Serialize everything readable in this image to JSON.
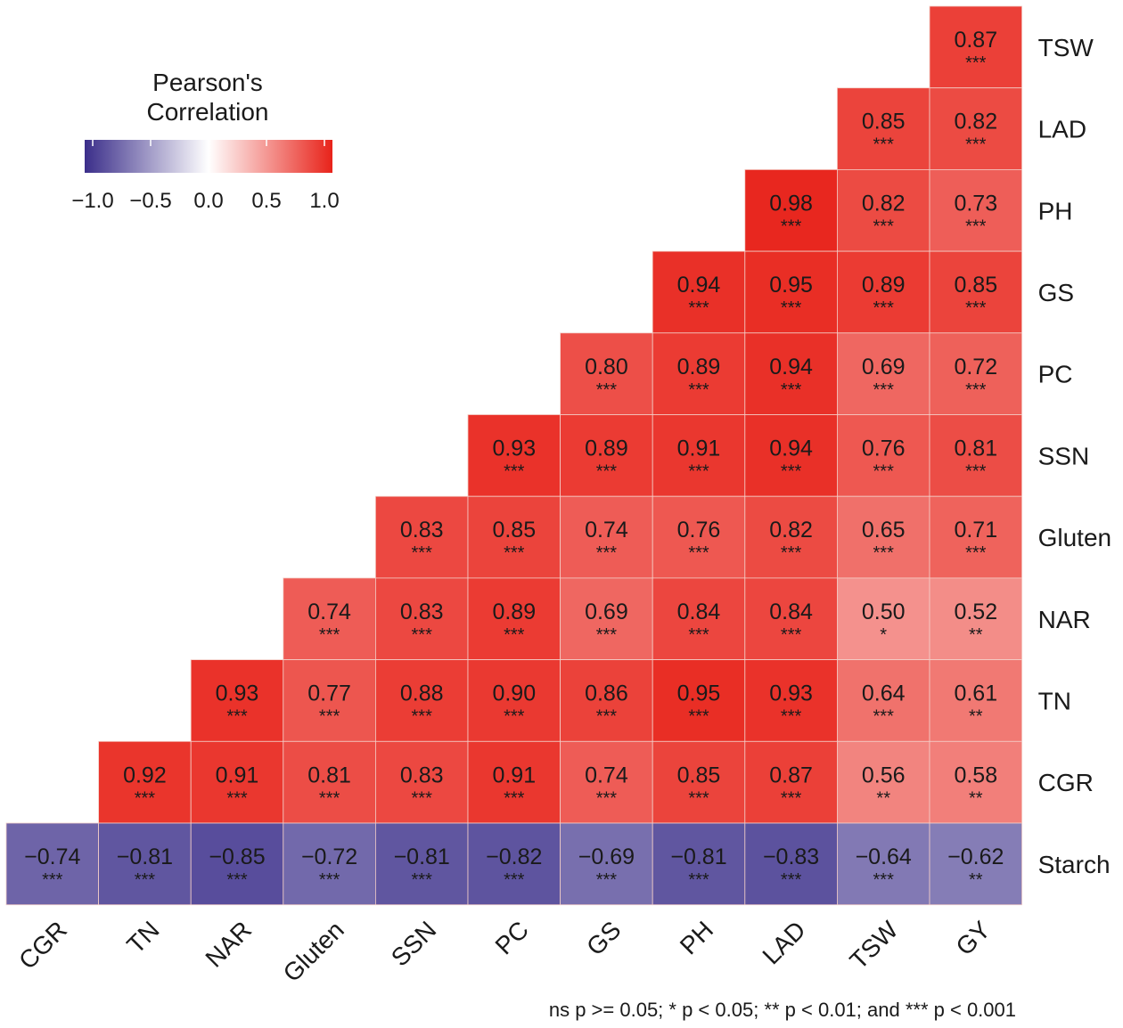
{
  "chart_data": {
    "type": "heatmap",
    "legend": {
      "title_lines": [
        "Pearson's",
        "Correlation"
      ],
      "ticks": [
        "−1.0",
        "−0.5",
        "0.0",
        "0.5",
        "1.0"
      ],
      "range": [
        -1.0,
        1.0
      ],
      "colors": {
        "low": "#3b2e8a",
        "mid": "#ffffff",
        "high": "#e8231a"
      },
      "placement": "top-left"
    },
    "columns": [
      "CGR",
      "TN",
      "NAR",
      "Gluten",
      "SSN",
      "PC",
      "GS",
      "PH",
      "LAD",
      "TSW",
      "GY"
    ],
    "rows": [
      "TSW",
      "LAD",
      "PH",
      "GS",
      "PC",
      "SSN",
      "Gluten",
      "NAR",
      "TN",
      "CGR",
      "Starch"
    ],
    "cells": [
      [
        null,
        null,
        null,
        null,
        null,
        null,
        null,
        null,
        null,
        null,
        {
          "v": 0.87,
          "label": "0.87",
          "sig": "***"
        }
      ],
      [
        null,
        null,
        null,
        null,
        null,
        null,
        null,
        null,
        null,
        {
          "v": 0.85,
          "label": "0.85",
          "sig": "***"
        },
        {
          "v": 0.82,
          "label": "0.82",
          "sig": "***"
        }
      ],
      [
        null,
        null,
        null,
        null,
        null,
        null,
        null,
        null,
        {
          "v": 0.98,
          "label": "0.98",
          "sig": "***"
        },
        {
          "v": 0.82,
          "label": "0.82",
          "sig": "***"
        },
        {
          "v": 0.73,
          "label": "0.73",
          "sig": "***"
        }
      ],
      [
        null,
        null,
        null,
        null,
        null,
        null,
        null,
        {
          "v": 0.94,
          "label": "0.94",
          "sig": "***"
        },
        {
          "v": 0.95,
          "label": "0.95",
          "sig": "***"
        },
        {
          "v": 0.89,
          "label": "0.89",
          "sig": "***"
        },
        {
          "v": 0.85,
          "label": "0.85",
          "sig": "***"
        }
      ],
      [
        null,
        null,
        null,
        null,
        null,
        null,
        {
          "v": 0.8,
          "label": "0.80",
          "sig": "***"
        },
        {
          "v": 0.89,
          "label": "0.89",
          "sig": "***"
        },
        {
          "v": 0.94,
          "label": "0.94",
          "sig": "***"
        },
        {
          "v": 0.69,
          "label": "0.69",
          "sig": "***"
        },
        {
          "v": 0.72,
          "label": "0.72",
          "sig": "***"
        }
      ],
      [
        null,
        null,
        null,
        null,
        null,
        {
          "v": 0.93,
          "label": "0.93",
          "sig": "***"
        },
        {
          "v": 0.89,
          "label": "0.89",
          "sig": "***"
        },
        {
          "v": 0.91,
          "label": "0.91",
          "sig": "***"
        },
        {
          "v": 0.94,
          "label": "0.94",
          "sig": "***"
        },
        {
          "v": 0.76,
          "label": "0.76",
          "sig": "***"
        },
        {
          "v": 0.81,
          "label": "0.81",
          "sig": "***"
        }
      ],
      [
        null,
        null,
        null,
        null,
        {
          "v": 0.83,
          "label": "0.83",
          "sig": "***"
        },
        {
          "v": 0.85,
          "label": "0.85",
          "sig": "***"
        },
        {
          "v": 0.74,
          "label": "0.74",
          "sig": "***"
        },
        {
          "v": 0.76,
          "label": "0.76",
          "sig": "***"
        },
        {
          "v": 0.82,
          "label": "0.82",
          "sig": "***"
        },
        {
          "v": 0.65,
          "label": "0.65",
          "sig": "***"
        },
        {
          "v": 0.71,
          "label": "0.71",
          "sig": "***"
        }
      ],
      [
        null,
        null,
        null,
        {
          "v": 0.74,
          "label": "0.74",
          "sig": "***"
        },
        {
          "v": 0.83,
          "label": "0.83",
          "sig": "***"
        },
        {
          "v": 0.89,
          "label": "0.89",
          "sig": "***"
        },
        {
          "v": 0.69,
          "label": "0.69",
          "sig": "***"
        },
        {
          "v": 0.84,
          "label": "0.84",
          "sig": "***"
        },
        {
          "v": 0.84,
          "label": "0.84",
          "sig": "***"
        },
        {
          "v": 0.5,
          "label": "0.50",
          "sig": "*"
        },
        {
          "v": 0.52,
          "label": "0.52",
          "sig": "**"
        }
      ],
      [
        null,
        null,
        {
          "v": 0.93,
          "label": "0.93",
          "sig": "***"
        },
        {
          "v": 0.77,
          "label": "0.77",
          "sig": "***"
        },
        {
          "v": 0.88,
          "label": "0.88",
          "sig": "***"
        },
        {
          "v": 0.9,
          "label": "0.90",
          "sig": "***"
        },
        {
          "v": 0.86,
          "label": "0.86",
          "sig": "***"
        },
        {
          "v": 0.95,
          "label": "0.95",
          "sig": "***"
        },
        {
          "v": 0.93,
          "label": "0.93",
          "sig": "***"
        },
        {
          "v": 0.64,
          "label": "0.64",
          "sig": "***"
        },
        {
          "v": 0.61,
          "label": "0.61",
          "sig": "**"
        }
      ],
      [
        null,
        {
          "v": 0.92,
          "label": "0.92",
          "sig": "***"
        },
        {
          "v": 0.91,
          "label": "0.91",
          "sig": "***"
        },
        {
          "v": 0.81,
          "label": "0.81",
          "sig": "***"
        },
        {
          "v": 0.83,
          "label": "0.83",
          "sig": "***"
        },
        {
          "v": 0.91,
          "label": "0.91",
          "sig": "***"
        },
        {
          "v": 0.74,
          "label": "0.74",
          "sig": "***"
        },
        {
          "v": 0.85,
          "label": "0.85",
          "sig": "***"
        },
        {
          "v": 0.87,
          "label": "0.87",
          "sig": "***"
        },
        {
          "v": 0.56,
          "label": "0.56",
          "sig": "**"
        },
        {
          "v": 0.58,
          "label": "0.58",
          "sig": "**"
        }
      ],
      [
        {
          "v": -0.74,
          "label": "−0.74",
          "sig": "***"
        },
        {
          "v": -0.81,
          "label": "−0.81",
          "sig": "***"
        },
        {
          "v": -0.85,
          "label": "−0.85",
          "sig": "***"
        },
        {
          "v": -0.72,
          "label": "−0.72",
          "sig": "***"
        },
        {
          "v": -0.81,
          "label": "−0.81",
          "sig": "***"
        },
        {
          "v": -0.82,
          "label": "−0.82",
          "sig": "***"
        },
        {
          "v": -0.69,
          "label": "−0.69",
          "sig": "***"
        },
        {
          "v": -0.81,
          "label": "−0.81",
          "sig": "***"
        },
        {
          "v": -0.83,
          "label": "−0.83",
          "sig": "***"
        },
        {
          "v": -0.64,
          "label": "−0.64",
          "sig": "***"
        },
        {
          "v": -0.62,
          "label": "−0.62",
          "sig": "**"
        }
      ]
    ],
    "footnote": "ns p >= 0.05; * p < 0.05; ** p < 0.01; and *** p < 0.001"
  }
}
